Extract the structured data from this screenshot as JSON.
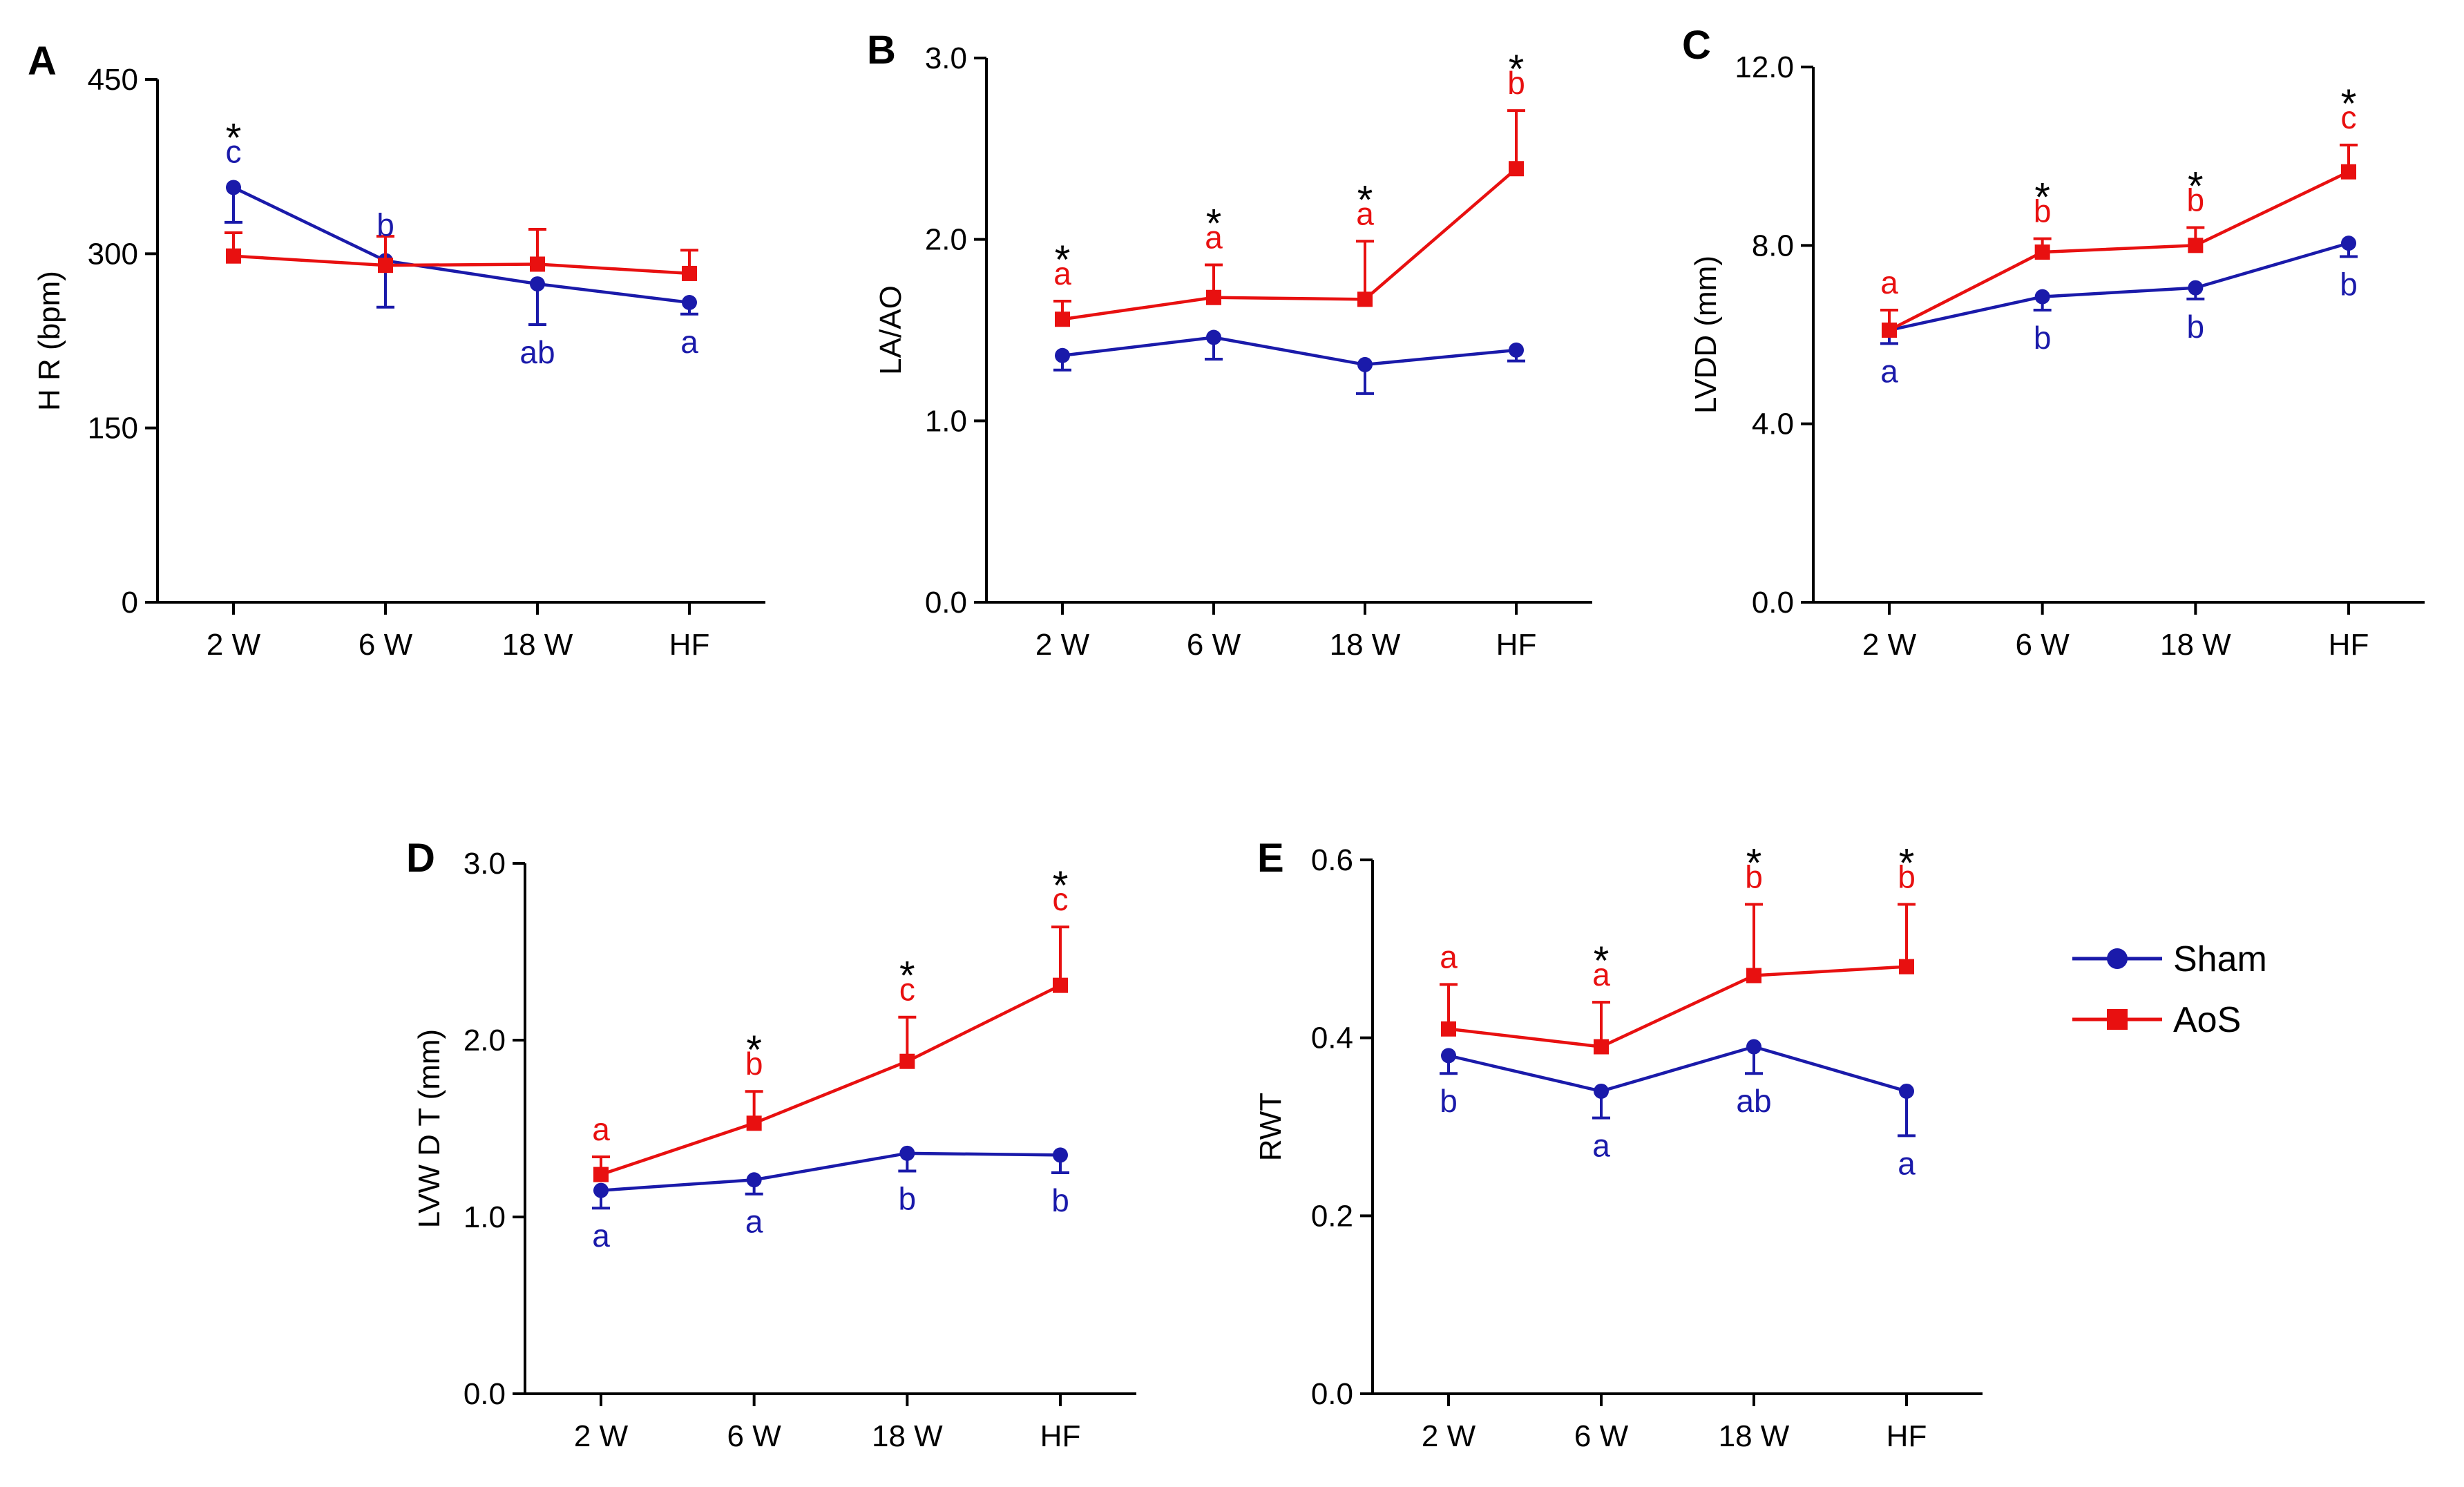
{
  "colors": {
    "sham": "#1a1aaa",
    "aos": "#e81010",
    "axis": "#000000"
  },
  "legend": [
    {
      "name": "Sham",
      "color": "#1a1aaa",
      "marker": "circle"
    },
    {
      "name": "AoS",
      "color": "#e81010",
      "marker": "square"
    }
  ],
  "chart_data": [
    {
      "id": "A",
      "type": "line",
      "letter": "A",
      "ylabel": "H R (bpm)",
      "categories": [
        "2 W",
        "6 W",
        "18 W",
        "HF"
      ],
      "ylim": [
        0,
        450
      ],
      "yticks": [
        "0",
        "150",
        "300",
        "450"
      ],
      "series": [
        {
          "name": "Sham",
          "values": [
            357,
            294,
            274,
            258
          ],
          "err": [
            30,
            40,
            35,
            10
          ],
          "err_dir": "down",
          "labels": [
            "c",
            "b",
            "ab",
            "a"
          ]
        },
        {
          "name": "AoS",
          "values": [
            298,
            290,
            291,
            283
          ],
          "err": [
            20,
            25,
            30,
            20
          ],
          "err_dir": "up",
          "labels": [
            "",
            "",
            "",
            ""
          ]
        }
      ],
      "stars": [
        "*",
        "",
        "",
        ""
      ]
    },
    {
      "id": "B",
      "type": "line",
      "letter": "B",
      "ylabel": "LA/AO",
      "categories": [
        "2 W",
        "6  W",
        "18 W",
        "HF"
      ],
      "ylim": [
        0,
        3
      ],
      "yticks": [
        "0.0",
        "1.0",
        "2.0",
        "3.0"
      ],
      "series": [
        {
          "name": "Sham",
          "values": [
            1.36,
            1.46,
            1.31,
            1.39
          ],
          "err": [
            0.08,
            0.12,
            0.16,
            0.06
          ],
          "err_dir": "down",
          "labels": [
            "",
            "",
            "",
            ""
          ]
        },
        {
          "name": "AoS",
          "values": [
            1.56,
            1.68,
            1.67,
            2.39
          ],
          "err": [
            0.1,
            0.18,
            0.32,
            0.32
          ],
          "err_dir": "up",
          "labels": [
            "a",
            "a",
            "a",
            "b"
          ]
        }
      ],
      "stars": [
        "*",
        "*",
        "*",
        "*"
      ]
    },
    {
      "id": "C",
      "type": "line",
      "letter": "C",
      "ylabel": "LVDD (mm)",
      "categories": [
        "2 W",
        "6 W",
        "18 W",
        "HF"
      ],
      "ylim": [
        0,
        12
      ],
      "yticks": [
        "0.0",
        "4.0",
        "8.0",
        "12.0"
      ],
      "series": [
        {
          "name": "Sham",
          "values": [
            6.1,
            6.85,
            7.05,
            8.05
          ],
          "err": [
            0.3,
            0.3,
            0.25,
            0.3
          ],
          "err_dir": "down",
          "labels": [
            "a",
            "b",
            "b",
            "b"
          ]
        },
        {
          "name": "AoS",
          "values": [
            6.1,
            7.85,
            8.0,
            9.65
          ],
          "err": [
            0.45,
            0.3,
            0.4,
            0.6
          ],
          "err_dir": "up",
          "labels": [
            "a",
            "b",
            "b",
            "c"
          ]
        }
      ],
      "stars": [
        "",
        "*",
        "*",
        "*"
      ]
    },
    {
      "id": "D",
      "type": "line",
      "letter": "D",
      "ylabel": "LVW D T (mm)",
      "categories": [
        "2 W",
        "6 W",
        "18 W",
        "HF"
      ],
      "ylim": [
        0,
        3
      ],
      "yticks": [
        "0.0",
        "1.0",
        "2.0",
        "3.0"
      ],
      "series": [
        {
          "name": "Sham",
          "values": [
            1.15,
            1.21,
            1.36,
            1.35
          ],
          "err": [
            0.1,
            0.08,
            0.1,
            0.1
          ],
          "err_dir": "down",
          "labels": [
            "a",
            "a",
            "b",
            "b"
          ]
        },
        {
          "name": "AoS",
          "values": [
            1.24,
            1.53,
            1.88,
            2.31
          ],
          "err": [
            0.1,
            0.18,
            0.25,
            0.33
          ],
          "err_dir": "up",
          "labels": [
            "a",
            "b",
            "c",
            "c"
          ]
        }
      ],
      "stars": [
        "",
        "*",
        "*",
        "*"
      ]
    },
    {
      "id": "E",
      "type": "line",
      "letter": "E",
      "ylabel": "RWT",
      "categories": [
        "2 W",
        "6 W",
        "18 W",
        "HF"
      ],
      "ylim": [
        0,
        0.6
      ],
      "yticks": [
        "0.0",
        "0.2",
        "0.4",
        "0.6"
      ],
      "series": [
        {
          "name": "Sham",
          "values": [
            0.38,
            0.34,
            0.39,
            0.34
          ],
          "err": [
            0.02,
            0.03,
            0.03,
            0.05
          ],
          "err_dir": "down",
          "labels": [
            "b",
            "a",
            "ab",
            "a"
          ]
        },
        {
          "name": "AoS",
          "values": [
            0.41,
            0.39,
            0.47,
            0.48
          ],
          "err": [
            0.05,
            0.05,
            0.08,
            0.07
          ],
          "err_dir": "up",
          "labels": [
            "a",
            "a",
            "b",
            "b"
          ]
        }
      ],
      "stars": [
        "",
        "*",
        "*",
        "*"
      ]
    }
  ]
}
